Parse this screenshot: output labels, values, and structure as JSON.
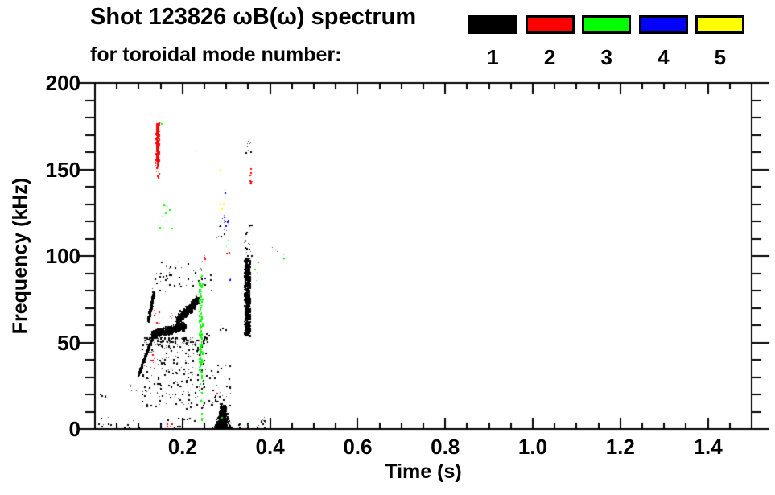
{
  "header": {
    "title_line1": "Shot 123826 ωB(ω) spectrum",
    "title_line2": "for toroidal mode number:"
  },
  "legend": {
    "entries": [
      {
        "label": "1",
        "color": "#000000"
      },
      {
        "label": "2",
        "color": "#ff0000"
      },
      {
        "label": "3",
        "color": "#00ff00"
      },
      {
        "label": "4",
        "color": "#0000ff"
      },
      {
        "label": "5",
        "color": "#ffff00"
      }
    ]
  },
  "chart_data": {
    "type": "scatter",
    "title": "Shot 123826 ωB(ω) spectrum for toroidal mode number: 1 2 3 4 5",
    "xlabel": "Time (s)",
    "ylabel": "Frequency (kHz)",
    "xlim": [
      0,
      1.5
    ],
    "ylim": [
      0,
      200
    ],
    "grid": false,
    "legend_position": "top-right",
    "xticks": {
      "major": [
        0.2,
        0.4,
        0.6,
        0.8,
        1.0,
        1.2,
        1.4
      ],
      "labels": [
        "0.2",
        "0.4",
        "0.6",
        "0.8",
        "1.0",
        "1.2",
        "1.4"
      ],
      "minor_step": 0.05
    },
    "yticks": {
      "major": [
        0,
        50,
        100,
        150,
        200
      ],
      "labels": [
        "0",
        "50",
        "100",
        "150",
        "200"
      ],
      "minor_step": 10
    },
    "mode_colors": {
      "1": "#000000",
      "2": "#ff0000",
      "3": "#00ff00",
      "4": "#0000ff",
      "5": "#ffff00"
    },
    "units": {
      "t": "s",
      "f": "kHz"
    },
    "clusters": [
      {
        "mode": 1,
        "shape": "seg",
        "t": [
          0.097,
          0.128
        ],
        "f": [
          31,
          52
        ],
        "jt": 0.0015,
        "jf": 1.8,
        "n": 170
      },
      {
        "mode": 1,
        "shape": "seg",
        "t": [
          0.121,
          0.133
        ],
        "f": [
          63,
          79
        ],
        "jt": 0.0028,
        "jf": 2.5,
        "n": 260
      },
      {
        "mode": 1,
        "shape": "seg",
        "t": [
          0.128,
          0.205
        ],
        "f": [
          55,
          60
        ],
        "jt": 0.0022,
        "jf": 3.0,
        "n": 820
      },
      {
        "mode": 1,
        "shape": "seg",
        "t": [
          0.186,
          0.235
        ],
        "f": [
          63,
          75
        ],
        "jt": 0.0045,
        "jf": 3.6,
        "n": 520
      },
      {
        "mode": 1,
        "shape": "rain",
        "t": [
          0.105,
          0.255
        ],
        "f": [
          12,
          53
        ],
        "cols": 30,
        "n": 380
      },
      {
        "mode": 1,
        "shape": "x",
        "t": [
          0.13,
          0.265
        ],
        "f": [
          79,
          97
        ],
        "n": 42
      },
      {
        "mode": 1,
        "shape": "v",
        "t": [
          0.3405,
          0.3535
        ],
        "f": [
          54,
          99
        ],
        "n": 620
      },
      {
        "mode": 1,
        "shape": "x",
        "t": [
          0.339,
          0.356
        ],
        "f": [
          99,
          121
        ],
        "n": 26
      },
      {
        "mode": 1,
        "shape": "tri",
        "t": [
          0.264,
          0.318
        ],
        "f": [
          0,
          14
        ],
        "n": 620
      },
      {
        "mode": 1,
        "shape": "x",
        "t": [
          0.257,
          0.31
        ],
        "f": [
          14,
          38
        ],
        "n": 40
      },
      {
        "mode": 1,
        "shape": "x",
        "t": [
          0.344,
          0.356
        ],
        "f": [
          160,
          169
        ],
        "n": 9
      },
      {
        "mode": 1,
        "shape": "x",
        "t": [
          0.145,
          0.172
        ],
        "f": [
          88,
          97
        ],
        "n": 10
      },
      {
        "mode": 1,
        "shape": "x",
        "t": [
          0.27,
          0.306
        ],
        "f": [
          110,
          122
        ],
        "n": 12
      },
      {
        "mode": 1,
        "shape": "x",
        "t": [
          0.282,
          0.3
        ],
        "f": [
          56,
          60
        ],
        "n": 5
      },
      {
        "mode": 1,
        "shape": "x",
        "t": [
          0.005,
          0.035
        ],
        "f": [
          0,
          8
        ],
        "n": 7
      },
      {
        "mode": 1,
        "shape": "x",
        "t": [
          0.01,
          0.025
        ],
        "f": [
          18,
          22
        ],
        "n": 4
      },
      {
        "mode": 1,
        "shape": "x",
        "t": [
          0.072,
          0.095
        ],
        "f": [
          21,
          29
        ],
        "n": 5
      },
      {
        "mode": 1,
        "shape": "x",
        "t": [
          0.05,
          0.1
        ],
        "f": [
          0,
          6
        ],
        "n": 9
      },
      {
        "mode": 1,
        "shape": "x",
        "t": [
          0.15,
          0.23
        ],
        "f": [
          0,
          8
        ],
        "n": 12
      },
      {
        "mode": 1,
        "shape": "x",
        "t": [
          0.32,
          0.336
        ],
        "f": [
          0,
          5
        ],
        "n": 5
      },
      {
        "mode": 1,
        "shape": "x",
        "t": [
          0.37,
          0.389
        ],
        "f": [
          1,
          7
        ],
        "n": 16
      },
      {
        "mode": 1,
        "shape": "x",
        "t": [
          0.248,
          0.26
        ],
        "f": [
          49,
          56
        ],
        "n": 5
      },
      {
        "mode": 1,
        "shape": "x",
        "t": [
          0.4,
          0.43
        ],
        "f": [
          102,
          106
        ],
        "n": 3
      },
      {
        "mode": 3,
        "shape": "v",
        "t": [
          0.2365,
          0.2445
        ],
        "f": [
          31,
          90
        ],
        "n": 130
      },
      {
        "mode": 3,
        "shape": "x",
        "t": [
          0.238,
          0.245
        ],
        "f": [
          15,
          30
        ],
        "n": 8
      },
      {
        "mode": 3,
        "shape": "x",
        "t": [
          0.239,
          0.244
        ],
        "f": [
          5,
          12
        ],
        "n": 3
      },
      {
        "mode": 3,
        "shape": "x",
        "t": [
          0.145,
          0.176
        ],
        "f": [
          115,
          133
        ],
        "n": 14
      },
      {
        "mode": 3,
        "shape": "x",
        "t": [
          0.147,
          0.153
        ],
        "f": [
          176,
          180
        ],
        "n": 2
      },
      {
        "mode": 3,
        "shape": "x",
        "t": [
          0.228,
          0.236
        ],
        "f": [
          158,
          163
        ],
        "n": 3
      },
      {
        "mode": 3,
        "shape": "x",
        "t": [
          0.295,
          0.308
        ],
        "f": [
          97,
          110
        ],
        "n": 5
      },
      {
        "mode": 3,
        "shape": "x",
        "t": [
          0.362,
          0.373
        ],
        "f": [
          85,
          97
        ],
        "n": 5
      },
      {
        "mode": 3,
        "shape": "x",
        "t": [
          0.343,
          0.351
        ],
        "f": [
          0,
          3
        ],
        "n": 2
      },
      {
        "mode": 3,
        "shape": "x",
        "t": [
          0.427,
          0.433
        ],
        "f": [
          96,
          101
        ],
        "n": 3
      },
      {
        "mode": 3,
        "shape": "x",
        "t": [
          0.287,
          0.292
        ],
        "f": [
          6,
          9
        ],
        "n": 1
      },
      {
        "mode": 4,
        "shape": "x",
        "t": [
          0.292,
          0.307
        ],
        "f": [
          115,
          124
        ],
        "n": 9
      },
      {
        "mode": 4,
        "shape": "x",
        "t": [
          0.248,
          0.254
        ],
        "f": [
          84,
          88
        ],
        "n": 2
      },
      {
        "mode": 4,
        "shape": "x",
        "t": [
          0.305,
          0.312
        ],
        "f": [
          84,
          88
        ],
        "n": 2
      },
      {
        "mode": 4,
        "shape": "x",
        "t": [
          0.295,
          0.301
        ],
        "f": [
          135,
          139
        ],
        "n": 2
      },
      {
        "mode": 5,
        "shape": "x",
        "t": [
          0.283,
          0.297
        ],
        "f": [
          126,
          131
        ],
        "n": 5
      },
      {
        "mode": 5,
        "shape": "x",
        "t": [
          0.283,
          0.289
        ],
        "f": [
          149,
          152
        ],
        "n": 2
      },
      {
        "mode": 2,
        "shape": "v",
        "t": [
          0.1385,
          0.1455
        ],
        "f": [
          152,
          177
        ],
        "n": 170
      },
      {
        "mode": 2,
        "shape": "x",
        "t": [
          0.1385,
          0.146
        ],
        "f": [
          143,
          152
        ],
        "n": 12
      },
      {
        "mode": 2,
        "shape": "x",
        "t": [
          0.122,
          0.133
        ],
        "f": [
          38,
          48
        ],
        "n": 7
      },
      {
        "mode": 2,
        "shape": "x",
        "t": [
          0.133,
          0.185
        ],
        "f": [
          61,
          69
        ],
        "n": 14
      },
      {
        "mode": 2,
        "shape": "x",
        "t": [
          0.16,
          0.19
        ],
        "f": [
          1,
          4
        ],
        "n": 5
      },
      {
        "mode": 2,
        "shape": "x",
        "t": [
          0.243,
          0.252
        ],
        "f": [
          92,
          101
        ],
        "n": 6
      },
      {
        "mode": 2,
        "shape": "x",
        "t": [
          0.35,
          0.358
        ],
        "f": [
          142,
          151
        ],
        "n": 9
      },
      {
        "mode": 2,
        "shape": "x",
        "t": [
          0.299,
          0.306
        ],
        "f": [
          99,
          103
        ],
        "n": 3
      },
      {
        "mode": 2,
        "shape": "x",
        "t": [
          0.276,
          0.282
        ],
        "f": [
          19,
          22
        ],
        "n": 1
      }
    ]
  }
}
